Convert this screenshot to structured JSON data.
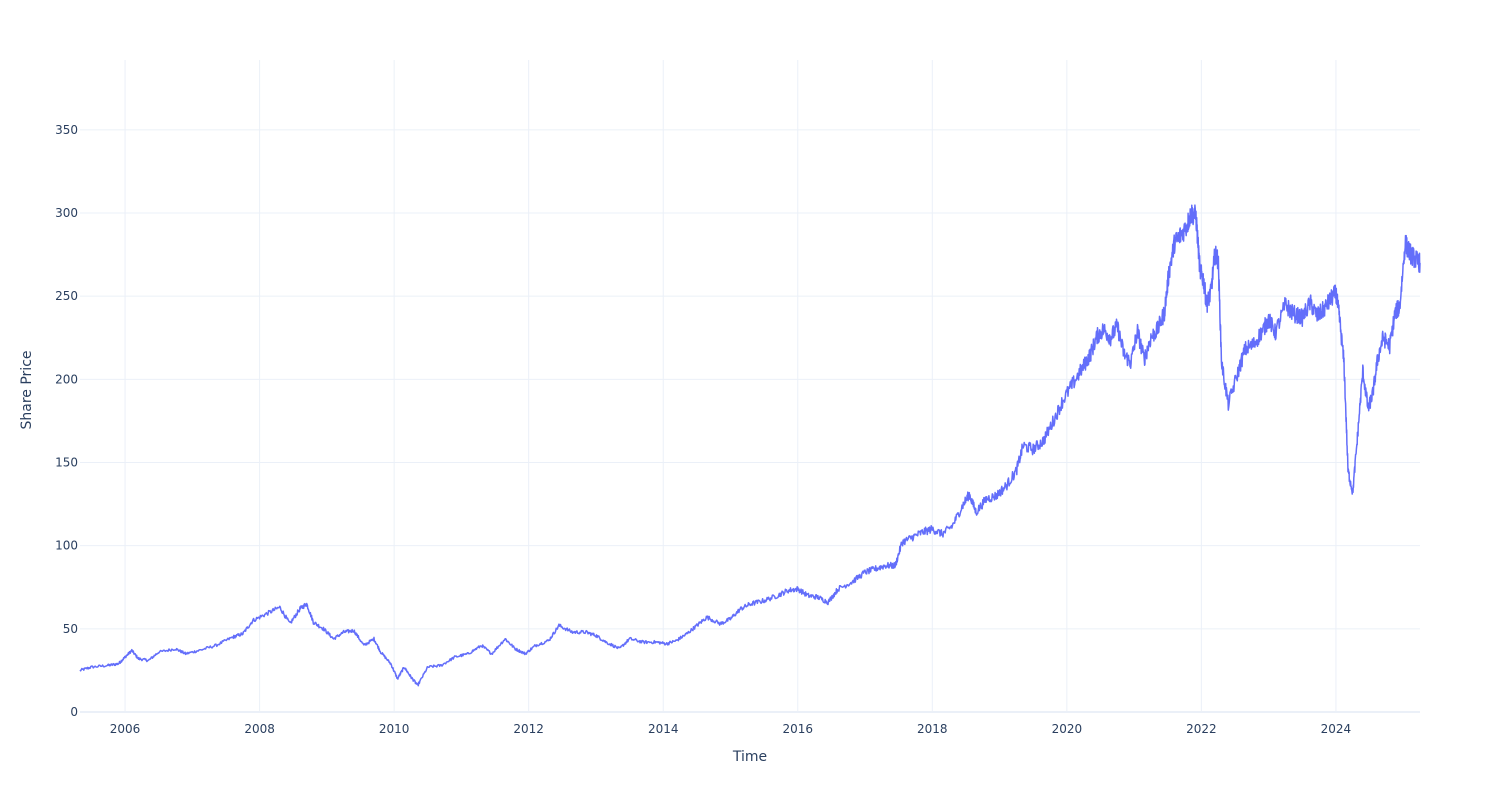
{
  "chart_data": {
    "type": "line",
    "title": "",
    "xlabel": "Time",
    "ylabel": "Share Price",
    "xlim": [
      2005.33,
      2025.25
    ],
    "ylim": [
      0,
      392
    ],
    "x_ticks": [
      {
        "value": 2006,
        "label": "2006"
      },
      {
        "value": 2008,
        "label": "2008"
      },
      {
        "value": 2010,
        "label": "2010"
      },
      {
        "value": 2012,
        "label": "2012"
      },
      {
        "value": 2014,
        "label": "2014"
      },
      {
        "value": 2016,
        "label": "2016"
      },
      {
        "value": 2018,
        "label": "2018"
      },
      {
        "value": 2020,
        "label": "2020"
      },
      {
        "value": 2022,
        "label": "2022"
      },
      {
        "value": 2024,
        "label": "2024"
      }
    ],
    "y_ticks": [
      {
        "value": 0,
        "label": "0"
      },
      {
        "value": 50,
        "label": "50"
      },
      {
        "value": 100,
        "label": "100"
      },
      {
        "value": 150,
        "label": "150"
      },
      {
        "value": 200,
        "label": "200"
      },
      {
        "value": 250,
        "label": "250"
      },
      {
        "value": 300,
        "label": "300"
      },
      {
        "value": 350,
        "label": "350"
      }
    ],
    "grid": true,
    "legend": "none",
    "series": [
      {
        "color": "#636efa",
        "points": [
          [
            2005.33,
            25
          ],
          [
            2005.5,
            27
          ],
          [
            2005.75,
            28
          ],
          [
            2005.9,
            29
          ],
          [
            2006.0,
            33
          ],
          [
            2006.1,
            37
          ],
          [
            2006.2,
            32
          ],
          [
            2006.35,
            31
          ],
          [
            2006.5,
            36
          ],
          [
            2006.75,
            38
          ],
          [
            2006.9,
            35
          ],
          [
            2007.1,
            37
          ],
          [
            2007.35,
            40
          ],
          [
            2007.6,
            45
          ],
          [
            2007.75,
            47
          ],
          [
            2007.9,
            55
          ],
          [
            2008.1,
            59
          ],
          [
            2008.3,
            63
          ],
          [
            2008.45,
            53
          ],
          [
            2008.6,
            62
          ],
          [
            2008.7,
            65
          ],
          [
            2008.8,
            54
          ],
          [
            2008.95,
            50
          ],
          [
            2009.1,
            44
          ],
          [
            2009.25,
            48
          ],
          [
            2009.4,
            49
          ],
          [
            2009.55,
            40
          ],
          [
            2009.7,
            44
          ],
          [
            2009.8,
            36
          ],
          [
            2009.95,
            29
          ],
          [
            2010.05,
            20
          ],
          [
            2010.15,
            27
          ],
          [
            2010.25,
            21
          ],
          [
            2010.35,
            16
          ],
          [
            2010.5,
            27
          ],
          [
            2010.7,
            28
          ],
          [
            2010.9,
            33
          ],
          [
            2011.1,
            35
          ],
          [
            2011.3,
            40
          ],
          [
            2011.45,
            35
          ],
          [
            2011.65,
            44
          ],
          [
            2011.8,
            38
          ],
          [
            2011.95,
            35
          ],
          [
            2012.1,
            40
          ],
          [
            2012.3,
            43
          ],
          [
            2012.45,
            52
          ],
          [
            2012.65,
            48
          ],
          [
            2012.85,
            48
          ],
          [
            2013.0,
            46
          ],
          [
            2013.15,
            42
          ],
          [
            2013.35,
            38
          ],
          [
            2013.5,
            44
          ],
          [
            2013.7,
            42
          ],
          [
            2013.9,
            42
          ],
          [
            2014.05,
            41
          ],
          [
            2014.2,
            43
          ],
          [
            2014.35,
            47
          ],
          [
            2014.5,
            52
          ],
          [
            2014.65,
            57
          ],
          [
            2014.85,
            53
          ],
          [
            2015.0,
            56
          ],
          [
            2015.15,
            62
          ],
          [
            2015.3,
            65
          ],
          [
            2015.5,
            67
          ],
          [
            2015.7,
            70
          ],
          [
            2015.85,
            73
          ],
          [
            2016.0,
            74
          ],
          [
            2016.15,
            70
          ],
          [
            2016.3,
            69
          ],
          [
            2016.45,
            66
          ],
          [
            2016.6,
            74
          ],
          [
            2016.8,
            78
          ],
          [
            2017.0,
            84
          ],
          [
            2017.15,
            86
          ],
          [
            2017.3,
            88
          ],
          [
            2017.45,
            88
          ],
          [
            2017.55,
            102
          ],
          [
            2017.7,
            105
          ],
          [
            2017.85,
            108
          ],
          [
            2018.0,
            110
          ],
          [
            2018.15,
            107
          ],
          [
            2018.3,
            112
          ],
          [
            2018.45,
            124
          ],
          [
            2018.55,
            131
          ],
          [
            2018.65,
            120
          ],
          [
            2018.8,
            128
          ],
          [
            2018.95,
            130
          ],
          [
            2019.1,
            136
          ],
          [
            2019.25,
            145
          ],
          [
            2019.35,
            160
          ],
          [
            2019.5,
            158
          ],
          [
            2019.65,
            163
          ],
          [
            2019.8,
            175
          ],
          [
            2019.95,
            188
          ],
          [
            2020.1,
            198
          ],
          [
            2020.25,
            208
          ],
          [
            2020.35,
            215
          ],
          [
            2020.45,
            226
          ],
          [
            2020.55,
            230
          ],
          [
            2020.65,
            225
          ],
          [
            2020.75,
            232
          ],
          [
            2020.85,
            215
          ],
          [
            2020.95,
            210
          ],
          [
            2021.05,
            229
          ],
          [
            2021.15,
            212
          ],
          [
            2021.25,
            225
          ],
          [
            2021.35,
            230
          ],
          [
            2021.45,
            240
          ],
          [
            2021.52,
            265
          ],
          [
            2021.6,
            282
          ],
          [
            2021.68,
            286
          ],
          [
            2021.78,
            292
          ],
          [
            2021.85,
            300
          ],
          [
            2021.92,
            298
          ],
          [
            2021.98,
            265
          ],
          [
            2022.03,
            260
          ],
          [
            2022.08,
            245
          ],
          [
            2022.14,
            252
          ],
          [
            2022.2,
            275
          ],
          [
            2022.25,
            272
          ],
          [
            2022.3,
            210
          ],
          [
            2022.4,
            185
          ],
          [
            2022.55,
            205
          ],
          [
            2022.65,
            218
          ],
          [
            2022.78,
            221
          ],
          [
            2022.92,
            230
          ],
          [
            2023.0,
            236
          ],
          [
            2023.1,
            228
          ],
          [
            2023.25,
            245
          ],
          [
            2023.35,
            240
          ],
          [
            2023.5,
            237
          ],
          [
            2023.62,
            246
          ],
          [
            2023.72,
            238
          ],
          [
            2023.82,
            242
          ],
          [
            2023.92,
            248
          ],
          [
            2024.0,
            252
          ],
          [
            2024.05,
            238
          ],
          [
            2024.12,
            210
          ],
          [
            2024.18,
            145
          ],
          [
            2024.25,
            132
          ],
          [
            2024.32,
            165
          ],
          [
            2024.4,
            205
          ],
          [
            2024.48,
            182
          ],
          [
            2024.55,
            192
          ],
          [
            2024.62,
            212
          ],
          [
            2024.7,
            225
          ],
          [
            2024.8,
            220
          ],
          [
            2024.88,
            240
          ],
          [
            2024.95,
            244
          ],
          [
            2025.03,
            282
          ],
          [
            2025.1,
            276
          ],
          [
            2025.18,
            272
          ],
          [
            2025.25,
            270
          ]
        ]
      }
    ]
  }
}
